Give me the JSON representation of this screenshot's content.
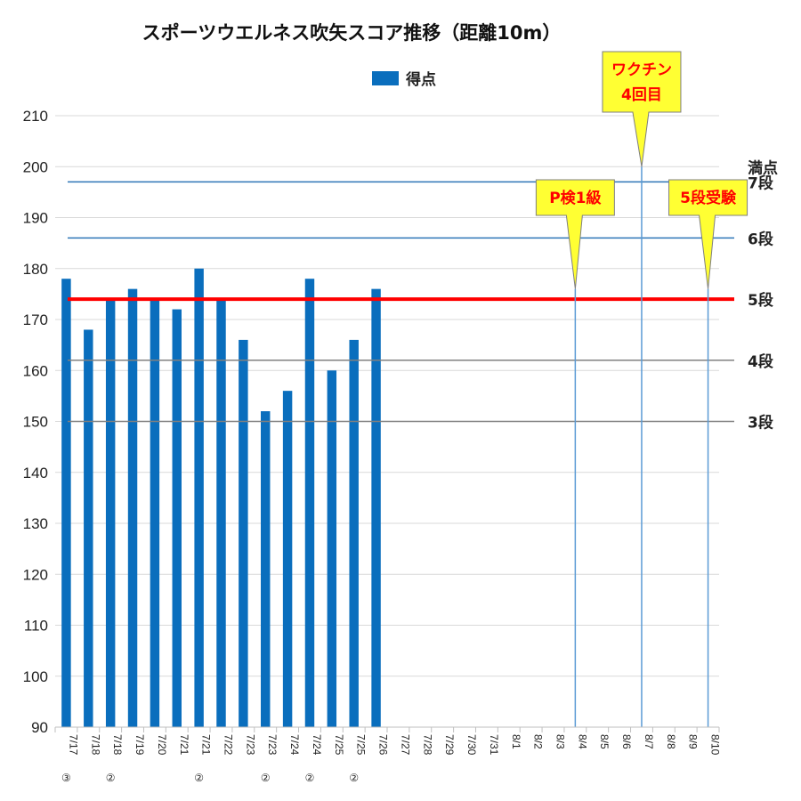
{
  "title": "スポーツウエルネス吹矢スコア推移（距離10m）",
  "chart_data": {
    "type": "bar",
    "title": "スポーツウエルネス吹矢スコア推移（距離10m）",
    "legend": {
      "position": "top",
      "entries": [
        "得点"
      ]
    },
    "series": [
      {
        "name": "得点",
        "color": "#0a6ebd",
        "values": [
          178,
          168,
          174,
          176,
          174,
          172,
          180,
          174,
          166,
          152,
          156,
          178,
          160,
          166,
          176,
          null,
          null,
          null,
          null,
          null,
          null,
          null,
          null,
          null,
          null,
          null,
          null,
          null,
          null,
          null
        ]
      }
    ],
    "categories": [
      "7/17③",
      "7/18",
      "7/18②",
      "7/19",
      "7/20",
      "7/21",
      "7/21②",
      "7/22",
      "7/23",
      "7/23②",
      "7/24",
      "7/24②",
      "7/25",
      "7/25②",
      "7/26",
      "7/27",
      "7/28",
      "7/29",
      "7/30",
      "7/31",
      "8/1",
      "8/2",
      "8/3",
      "8/4",
      "8/5",
      "8/6",
      "8/7",
      "8/8",
      "8/9",
      "8/10"
    ],
    "ylim": [
      90,
      210
    ],
    "yticks": [
      90,
      100,
      110,
      120,
      130,
      140,
      150,
      160,
      170,
      180,
      190,
      200,
      210
    ],
    "grid": "horizontal",
    "reference_lines": [
      {
        "label": "満点",
        "value": 200,
        "color": "#222222",
        "show_line": false
      },
      {
        "label": "7段",
        "value": 197,
        "color": "#2e75b6",
        "show_line": true
      },
      {
        "label": "6段",
        "value": 186,
        "color": "#2e75b6",
        "show_line": true
      },
      {
        "label": "5段",
        "value": 174,
        "color": "#ff0000",
        "label_color": "#ff0000",
        "show_line": true
      },
      {
        "label": "4段",
        "value": 162,
        "color": "#808080",
        "show_line": true
      },
      {
        "label": "3段",
        "value": 150,
        "color": "#808080",
        "show_line": true
      }
    ],
    "annotations": [
      {
        "text": [
          "P検1級"
        ],
        "category": "8/4",
        "text_color": "#ff0000",
        "pointer_value": 176
      },
      {
        "text": [
          "ワクチン",
          "4回目"
        ],
        "category": "8/7",
        "text_color": "#ff0000",
        "pointer_value": 200
      },
      {
        "text": [
          "5段受験"
        ],
        "category": "8/10",
        "text_color": "#ff0000",
        "pointer_value": 176
      }
    ]
  }
}
